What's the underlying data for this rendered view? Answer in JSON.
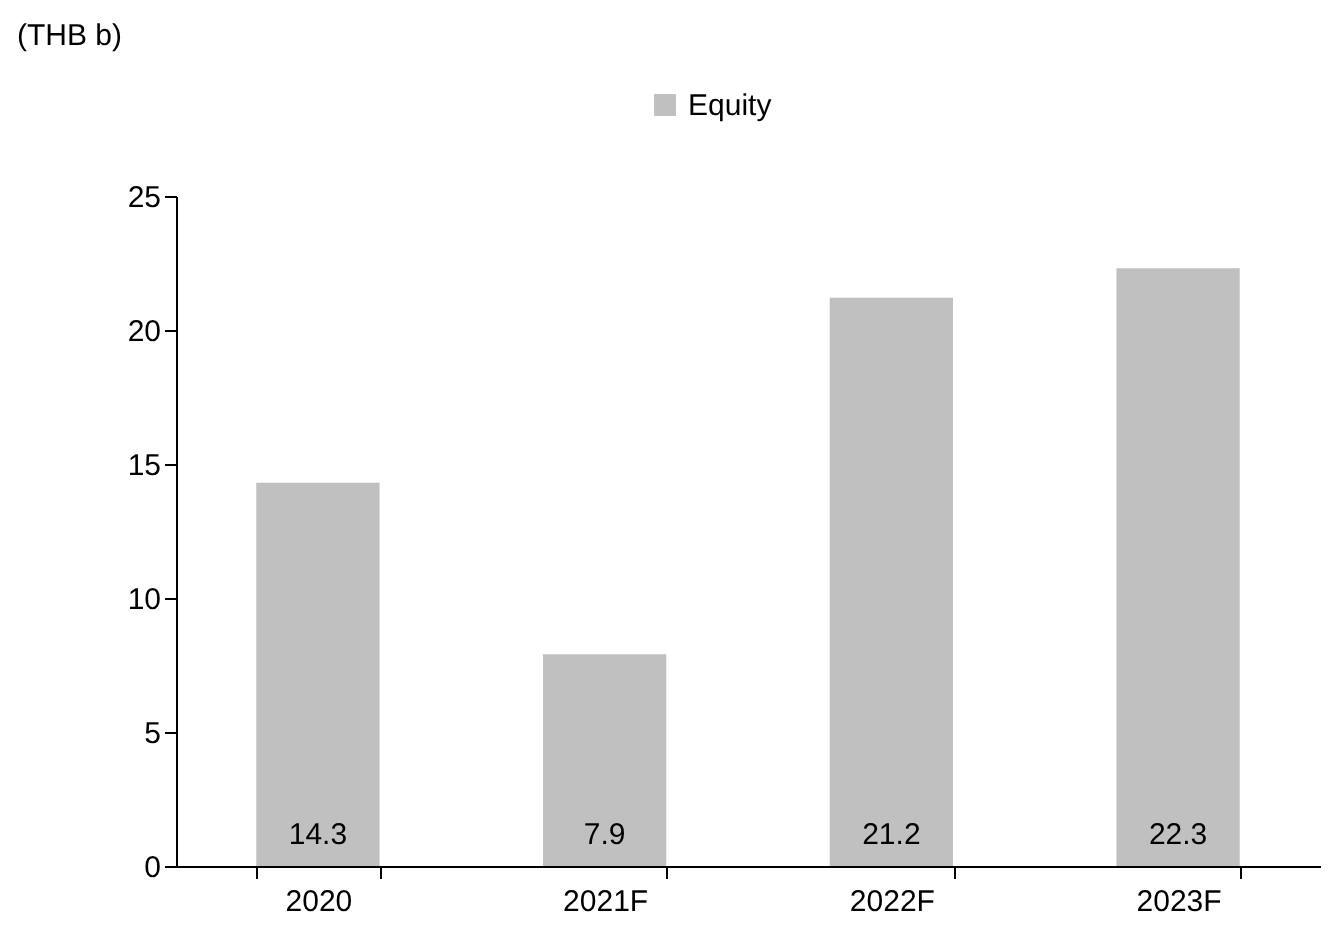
{
  "chart_data": {
    "type": "bar",
    "ylabel": "(THB b)",
    "categories": [
      "2020",
      "2021F",
      "2022F",
      "2023F"
    ],
    "series": [
      {
        "name": "Equity",
        "color": "#c0c0c0",
        "values": [
          14.3,
          7.9,
          21.2,
          22.3
        ]
      }
    ],
    "ylim": [
      0,
      25
    ],
    "yticks": [
      0,
      5,
      10,
      15,
      20,
      25
    ],
    "data_labels": true,
    "legend": "top"
  }
}
